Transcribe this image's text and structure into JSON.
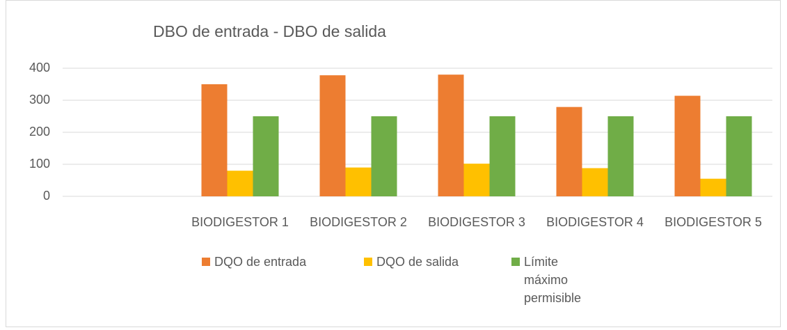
{
  "chart_data": {
    "type": "bar",
    "title": "DBO de entrada - DBO de salida",
    "categories": [
      null,
      "BIODIGESTOR 1",
      "BIODIGESTOR 2",
      "BIODIGESTOR 3",
      "BIODIGESTOR 4",
      "BIODIGESTOR 5"
    ],
    "series": [
      {
        "name": "DQO de entrada",
        "color": "#ed7d31",
        "values": [
          null,
          350,
          378,
          380,
          279,
          314
        ]
      },
      {
        "name": "DQO de salida",
        "color": "#ffc000",
        "values": [
          null,
          80,
          90,
          102,
          88,
          55
        ]
      },
      {
        "name": "Límite máximo permisible",
        "color": "#70ad47",
        "values": [
          null,
          250,
          250,
          250,
          250,
          250
        ]
      }
    ],
    "ylim": [
      0,
      400
    ],
    "yticks": [
      0,
      100,
      200,
      300,
      400
    ],
    "grid": true,
    "legend": "bottom"
  }
}
